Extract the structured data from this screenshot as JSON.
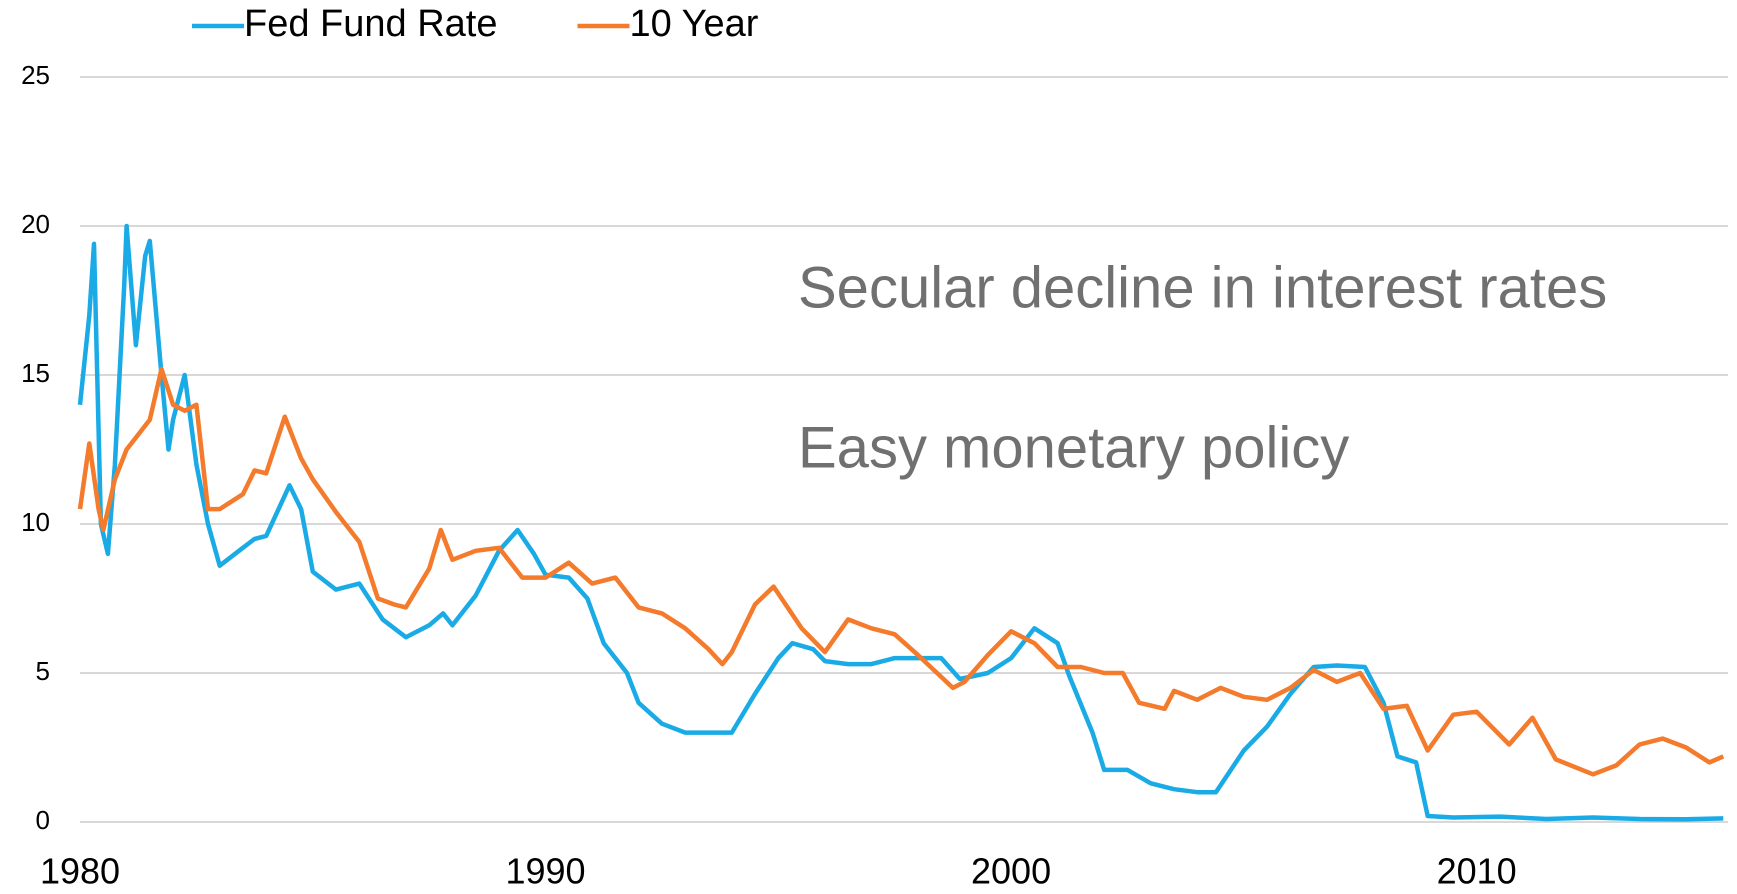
{
  "chart_data": {
    "type": "line",
    "annotations": [
      "Secular decline in interest rates",
      "Easy monetary policy"
    ],
    "xlim": [
      1980,
      2015.4
    ],
    "xticks": [
      1980,
      1990,
      2000,
      2010
    ],
    "ylim": [
      0,
      25
    ],
    "yticks": [
      0,
      5,
      10,
      15,
      20,
      25
    ],
    "grid": true,
    "legend": "top-left",
    "series": [
      {
        "name": "Fed Fund Rate",
        "color": "#1aabe6",
        "x": [
          1980.0,
          1980.2,
          1980.3,
          1980.45,
          1980.6,
          1980.75,
          1980.95,
          1981.0,
          1981.2,
          1981.4,
          1981.5,
          1981.75,
          1981.9,
          1982.0,
          1982.25,
          1982.5,
          1982.75,
          1983.0,
          1983.5,
          1983.75,
          1984.0,
          1984.5,
          1984.75,
          1985.0,
          1985.5,
          1986.0,
          1986.5,
          1987.0,
          1987.5,
          1987.8,
          1988.0,
          1988.5,
          1989.0,
          1989.4,
          1989.75,
          1990.0,
          1990.5,
          1990.9,
          1991.25,
          1991.75,
          1992.0,
          1992.5,
          1993.0,
          1993.5,
          1994.0,
          1994.5,
          1995.0,
          1995.3,
          1995.75,
          1996.0,
          1996.5,
          1997.0,
          1997.5,
          1998.0,
          1998.5,
          1998.9,
          1999.5,
          2000.0,
          2000.5,
          2001.0,
          2001.25,
          2001.75,
          2002.0,
          2002.5,
          2003.0,
          2003.5,
          2004.0,
          2004.4,
          2005.0,
          2005.5,
          2006.0,
          2006.5,
          2007.0,
          2007.6,
          2008.0,
          2008.3,
          2008.7,
          2008.95,
          2009.5,
          2010.5,
          2011.5,
          2012.5,
          2013.5,
          2014.5,
          2015.3
        ],
        "values": [
          14,
          17,
          19.4,
          10,
          9,
          12,
          18,
          20,
          16,
          19,
          19.5,
          15,
          12.5,
          13.5,
          15,
          12,
          10,
          8.6,
          9.2,
          9.5,
          9.6,
          11.3,
          10.5,
          8.4,
          7.8,
          8,
          6.8,
          6.2,
          6.6,
          7.0,
          6.6,
          7.6,
          9.1,
          9.8,
          9.0,
          8.3,
          8.2,
          7.5,
          6.0,
          5.0,
          4.0,
          3.3,
          3.0,
          3.0,
          3.0,
          4.3,
          5.5,
          6.0,
          5.8,
          5.4,
          5.3,
          5.3,
          5.5,
          5.5,
          5.5,
          4.8,
          5.0,
          5.5,
          6.5,
          6.0,
          4.9,
          3.0,
          1.75,
          1.75,
          1.3,
          1.1,
          1.0,
          1.0,
          2.4,
          3.2,
          4.3,
          5.2,
          5.25,
          5.2,
          4.0,
          2.2,
          2.0,
          0.2,
          0.15,
          0.18,
          0.1,
          0.15,
          0.1,
          0.09,
          0.12
        ]
      },
      {
        "name": "10 Year",
        "color": "#f47a2c",
        "x": [
          1980.0,
          1980.2,
          1980.4,
          1980.5,
          1980.75,
          1981.0,
          1981.5,
          1981.75,
          1982.0,
          1982.25,
          1982.5,
          1982.75,
          1983.0,
          1983.5,
          1983.75,
          1984.0,
          1984.4,
          1984.75,
          1985.0,
          1985.5,
          1986.0,
          1986.4,
          1986.75,
          1987.0,
          1987.5,
          1987.75,
          1988.0,
          1988.5,
          1989.0,
          1989.5,
          1990.0,
          1990.5,
          1991.0,
          1991.5,
          1992.0,
          1992.5,
          1993.0,
          1993.5,
          1993.8,
          1994.0,
          1994.5,
          1994.9,
          1995.5,
          1996.0,
          1996.5,
          1997.0,
          1997.5,
          1998.0,
          1998.75,
          1999.0,
          1999.5,
          2000.0,
          2000.5,
          2001.0,
          2001.5,
          2002.0,
          2002.4,
          2002.75,
          2003.3,
          2003.5,
          2004.0,
          2004.5,
          2005.0,
          2005.5,
          2006.0,
          2006.5,
          2007.0,
          2007.5,
          2008.0,
          2008.5,
          2008.95,
          2009.5,
          2010.0,
          2010.7,
          2011.2,
          2011.7,
          2012.5,
          2013.0,
          2013.5,
          2014.0,
          2014.5,
          2015.0,
          2015.3
        ],
        "values": [
          10.5,
          12.7,
          10.5,
          9.8,
          11.5,
          12.5,
          13.5,
          15.2,
          14,
          13.8,
          14,
          10.5,
          10.5,
          11,
          11.8,
          11.7,
          13.6,
          12.2,
          11.5,
          10.4,
          9.4,
          7.5,
          7.3,
          7.2,
          8.5,
          9.8,
          8.8,
          9.1,
          9.2,
          8.2,
          8.2,
          8.7,
          8.0,
          8.2,
          7.2,
          7.0,
          6.5,
          5.8,
          5.3,
          5.7,
          7.3,
          7.9,
          6.5,
          5.7,
          6.8,
          6.5,
          6.3,
          5.6,
          4.5,
          4.7,
          5.6,
          6.4,
          6.0,
          5.2,
          5.2,
          5.0,
          5.0,
          4.0,
          3.8,
          4.4,
          4.1,
          4.5,
          4.2,
          4.1,
          4.5,
          5.1,
          4.7,
          5.0,
          3.8,
          3.9,
          2.4,
          3.6,
          3.7,
          2.6,
          3.5,
          2.1,
          1.6,
          1.9,
          2.6,
          2.8,
          2.5,
          2.0,
          2.2
        ]
      }
    ]
  }
}
